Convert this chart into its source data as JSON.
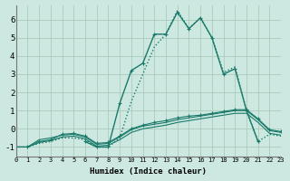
{
  "xlabel": "Humidex (Indice chaleur)",
  "bg_color": "#cce8e0",
  "grid_color": "#aaccbb",
  "line_color": "#1a7a6a",
  "xlim": [
    0,
    23
  ],
  "ylim": [
    -1.5,
    6.8
  ],
  "yticks": [
    -1,
    0,
    1,
    2,
    3,
    4,
    5,
    6
  ],
  "xticks": [
    0,
    1,
    2,
    3,
    4,
    5,
    6,
    7,
    8,
    9,
    10,
    11,
    12,
    13,
    14,
    15,
    16,
    17,
    18,
    19,
    20,
    21,
    22,
    23
  ],
  "series": [
    {
      "x": [
        0,
        1,
        2,
        3,
        4,
        5,
        6,
        7,
        8,
        9,
        10,
        11,
        12,
        13,
        14,
        15,
        16,
        17,
        18,
        19,
        20,
        21,
        22,
        23
      ],
      "y": [
        -1.0,
        -1.0,
        -0.8,
        -0.7,
        -0.5,
        -0.5,
        -0.6,
        -1.0,
        -1.0,
        -0.5,
        1.5,
        3.0,
        4.5,
        5.2,
        6.5,
        5.5,
        6.1,
        5.0,
        3.1,
        3.4,
        1.0,
        -0.7,
        -0.3,
        -0.4
      ],
      "style": ":",
      "marker": null,
      "lw": 1.0
    },
    {
      "x": [
        6,
        7,
        8,
        9,
        10,
        11,
        12,
        13,
        14,
        15,
        16,
        17,
        18,
        19,
        20,
        21
      ],
      "y": [
        -0.7,
        -1.0,
        -1.0,
        1.4,
        3.2,
        3.6,
        5.2,
        5.2,
        6.4,
        5.5,
        6.1,
        5.0,
        3.0,
        3.3,
        1.0,
        -0.7
      ],
      "style": "-",
      "marker": "+",
      "lw": 1.0
    },
    {
      "x": [
        0,
        1,
        2,
        3,
        4,
        5,
        6,
        7,
        8,
        9,
        10,
        11,
        12,
        13,
        14,
        15,
        16,
        17,
        18,
        19,
        20,
        21,
        22,
        23
      ],
      "y": [
        -1.0,
        -1.0,
        -0.75,
        -0.65,
        -0.45,
        -0.4,
        -0.55,
        -0.95,
        -0.9,
        -0.6,
        -0.2,
        0.0,
        0.1,
        0.2,
        0.35,
        0.45,
        0.55,
        0.65,
        0.75,
        0.85,
        0.85,
        0.35,
        -0.25,
        -0.35
      ],
      "style": "-",
      "marker": null,
      "lw": 0.8
    },
    {
      "x": [
        0,
        1,
        2,
        3,
        4,
        5,
        6,
        7,
        8,
        9,
        10,
        11,
        12,
        13,
        14,
        15,
        16,
        17,
        18,
        19,
        20,
        21,
        22,
        23
      ],
      "y": [
        -1.0,
        -1.0,
        -0.6,
        -0.5,
        -0.35,
        -0.3,
        -0.45,
        -0.85,
        -0.8,
        -0.45,
        -0.05,
        0.15,
        0.25,
        0.35,
        0.5,
        0.6,
        0.7,
        0.8,
        0.9,
        1.0,
        1.0,
        0.5,
        -0.1,
        -0.2
      ],
      "style": "-",
      "marker": null,
      "lw": 0.8
    },
    {
      "x": [
        0,
        1,
        2,
        3,
        4,
        5,
        6,
        7,
        8,
        9,
        10,
        11,
        12,
        13,
        14,
        15,
        16,
        17,
        18,
        19,
        20,
        21,
        22,
        23
      ],
      "y": [
        -1.0,
        -1.0,
        -0.7,
        -0.6,
        -0.3,
        -0.25,
        -0.4,
        -0.8,
        -0.75,
        -0.4,
        0.0,
        0.2,
        0.35,
        0.45,
        0.6,
        0.7,
        0.75,
        0.85,
        0.95,
        1.05,
        1.05,
        0.55,
        -0.05,
        -0.15
      ],
      "style": "-",
      "marker": "+",
      "lw": 0.8
    }
  ]
}
